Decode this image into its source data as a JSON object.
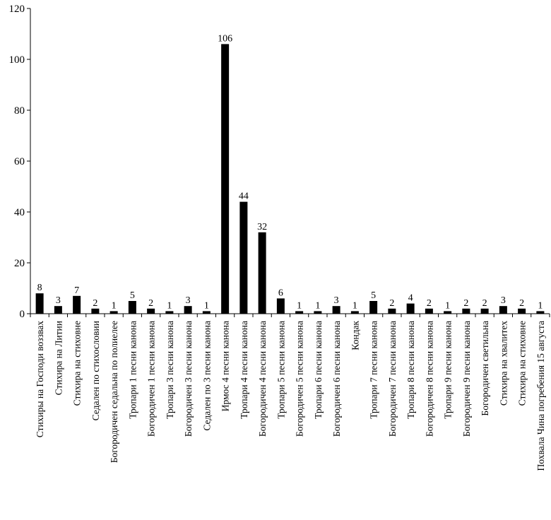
{
  "chart_data": {
    "type": "bar",
    "title": "",
    "xlabel": "",
    "ylabel": "",
    "ylim": [
      0,
      120
    ],
    "yticks": [
      0,
      20,
      40,
      60,
      80,
      100,
      120
    ],
    "grid": false,
    "legend": "none",
    "bar_color": "#000000",
    "categories": [
      "Стихиры на Господи воззвах",
      "Стихира на Литии",
      "Стихира на стиховне",
      "Седален по стихословии",
      "Богородичен седальна по полиелее",
      "Тропари 1 песни канона",
      "Богородичен 1 песни канона",
      "Тропари 3 песни канона",
      "Богородичен 3 песни канона",
      "Седален по 3 песни канона",
      "Ирмос 4 песни канона",
      "Тропари 4 песни канона",
      "Богородичен 4 песни канона",
      "Тропари 5 песни канона",
      "Богородичен 5 песни канона",
      "Тропари 6 песни канона",
      "Богородичен 6 песни канона",
      "Кондак",
      "Тропари 7 песни канона",
      "Богородичен 7 песни канона",
      "Тропари 8 песни канона",
      "Богородичен 8 песни канона",
      "Тропари 9 песни канона",
      "Богородичен 9 песни канона",
      "Богородичен светильна",
      "Стихира на хвалитех",
      "Стихира на стиховне",
      "Похвала Чина погребения 15 августа"
    ],
    "values": [
      8,
      3,
      7,
      2,
      1,
      5,
      2,
      1,
      3,
      1,
      106,
      44,
      32,
      6,
      1,
      1,
      3,
      1,
      5,
      2,
      4,
      2,
      1,
      2,
      2,
      3,
      2,
      1
    ]
  }
}
